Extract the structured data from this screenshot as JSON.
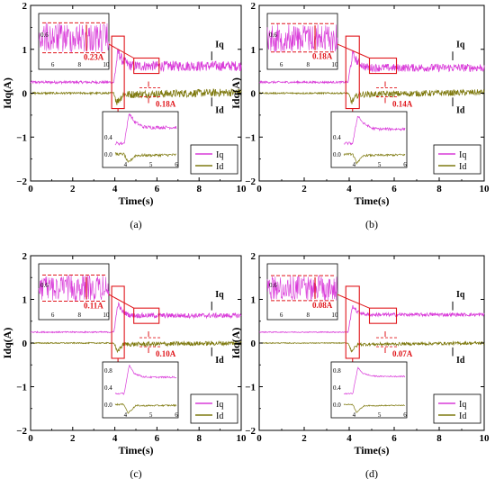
{
  "chart_data": [
    {
      "type": "line",
      "panel_label": "(a)",
      "xlabel": "Time(s)",
      "ylabel": "Idq(A)",
      "xlim": [
        0,
        10
      ],
      "ylim": [
        -2,
        2
      ],
      "xticks": [
        "0",
        "2",
        "4",
        "6",
        "8",
        "10"
      ],
      "yticks": [
        "−2",
        "−1",
        "0",
        "1",
        "2"
      ],
      "grid": false,
      "legend_position": "bottom-right",
      "step_time": 4.0,
      "series": [
        {
          "name": "Iq",
          "color": "#d93bd9",
          "x": [
            0,
            3.95,
            4.15,
            4.35,
            4.7,
            5.0,
            10
          ],
          "values": [
            0.25,
            0.25,
            0.95,
            0.75,
            0.63,
            0.62,
            0.62
          ],
          "ripple": 0.23
        },
        {
          "name": "Id",
          "color": "#7f7a10",
          "x": [
            0,
            3.95,
            4.1,
            4.4,
            10
          ],
          "values": [
            0.0,
            0.0,
            -0.2,
            -0.03,
            0.02
          ],
          "ripple": 0.18
        }
      ],
      "annotations": [
        "0.23A",
        "0.18A",
        "Iq",
        "Id"
      ],
      "inset_top": {
        "xticks": [
          "6",
          "8",
          "10"
        ],
        "yticks": [
          "0.6"
        ]
      },
      "inset_bottom": {
        "xticks": [
          "4",
          "5",
          "6"
        ],
        "yticks": [
          "0.4",
          "0.0"
        ]
      }
    },
    {
      "type": "line",
      "panel_label": "(b)",
      "xlabel": "Time(s)",
      "ylabel": "Idq(A)",
      "xlim": [
        0,
        10
      ],
      "ylim": [
        -2,
        2
      ],
      "xticks": [
        "0",
        "2",
        "4",
        "6",
        "8",
        "10"
      ],
      "yticks": [
        "−2",
        "−1",
        "0",
        "1",
        "2"
      ],
      "grid": false,
      "legend_position": "bottom-right",
      "step_time": 4.0,
      "series": [
        {
          "name": "Iq",
          "color": "#d93bd9",
          "x": [
            0,
            3.95,
            4.15,
            4.35,
            4.7,
            5.0,
            10
          ],
          "values": [
            0.25,
            0.25,
            0.9,
            0.72,
            0.6,
            0.58,
            0.58
          ],
          "ripple": 0.18
        },
        {
          "name": "Id",
          "color": "#7f7a10",
          "x": [
            0,
            3.95,
            4.1,
            4.4,
            10
          ],
          "values": [
            0.0,
            0.0,
            -0.2,
            -0.03,
            0.02
          ],
          "ripple": 0.14
        }
      ],
      "annotations": [
        "0.18A",
        "0.14A",
        "Iq",
        "Id"
      ],
      "inset_top": {
        "xticks": [
          "6",
          "8",
          "10"
        ],
        "yticks": [
          "0.6"
        ]
      },
      "inset_bottom": {
        "xticks": [
          "4",
          "5",
          "6"
        ],
        "yticks": [
          "0.4",
          "0.0"
        ]
      }
    },
    {
      "type": "line",
      "panel_label": "(c)",
      "xlabel": "Time(s)",
      "ylabel": "Idq(A)",
      "xlim": [
        0,
        10
      ],
      "ylim": [
        -2,
        2
      ],
      "xticks": [
        "0",
        "2",
        "4",
        "6",
        "8",
        "10"
      ],
      "yticks": [
        "−2",
        "−1",
        "0",
        "1",
        "2"
      ],
      "grid": false,
      "legend_position": "bottom-right",
      "step_time": 4.0,
      "series": [
        {
          "name": "Iq",
          "color": "#d93bd9",
          "x": [
            0,
            3.95,
            4.15,
            4.35,
            4.7,
            5.0,
            10
          ],
          "values": [
            0.25,
            0.25,
            0.9,
            0.72,
            0.64,
            0.63,
            0.63
          ],
          "ripple": 0.11
        },
        {
          "name": "Id",
          "color": "#7f7a10",
          "x": [
            0,
            3.95,
            4.1,
            4.4,
            10
          ],
          "values": [
            0.0,
            0.0,
            -0.2,
            -0.03,
            0.0
          ],
          "ripple": 0.1
        }
      ],
      "annotations": [
        "0.11A",
        "0.10A",
        "Iq",
        "Id"
      ],
      "inset_top": {
        "xticks": [
          "6",
          "8",
          "10"
        ],
        "yticks": [
          "0.6"
        ]
      },
      "inset_bottom": {
        "xticks": [
          "4",
          "5",
          "6"
        ],
        "yticks": [
          "0.8",
          "0.4",
          "0.0"
        ]
      }
    },
    {
      "type": "line",
      "panel_label": "(d)",
      "xlabel": "Time(s)",
      "ylabel": "Idq(A)",
      "xlim": [
        0,
        10
      ],
      "ylim": [
        -2,
        2
      ],
      "xticks": [
        "0",
        "2",
        "4",
        "6",
        "8",
        "10"
      ],
      "yticks": [
        "−2",
        "−1",
        "0",
        "1",
        "2"
      ],
      "grid": false,
      "legend_position": "bottom-right",
      "step_time": 4.0,
      "series": [
        {
          "name": "Iq",
          "color": "#d93bd9",
          "x": [
            0,
            3.95,
            4.15,
            4.35,
            4.7,
            5.0,
            10
          ],
          "values": [
            0.25,
            0.25,
            0.85,
            0.72,
            0.66,
            0.65,
            0.65
          ],
          "ripple": 0.08
        },
        {
          "name": "Id",
          "color": "#7f7a10",
          "x": [
            0,
            3.95,
            4.1,
            4.4,
            10
          ],
          "values": [
            0.0,
            0.0,
            -0.18,
            -0.03,
            0.0
          ],
          "ripple": 0.07
        }
      ],
      "annotations": [
        "0.08A",
        "0.07A",
        "Iq",
        "Id"
      ],
      "inset_top": {
        "xticks": [
          "6",
          "8",
          "10"
        ],
        "yticks": [
          "0.6"
        ]
      },
      "inset_bottom": {
        "xticks": [
          "4",
          "5",
          "6"
        ],
        "yticks": [
          "0.8",
          "0.4",
          "0.0"
        ]
      }
    }
  ],
  "colors": {
    "iq": "#d93bd9",
    "id": "#7f7a10",
    "annotation": "#e0161b",
    "axis": "#000000"
  }
}
